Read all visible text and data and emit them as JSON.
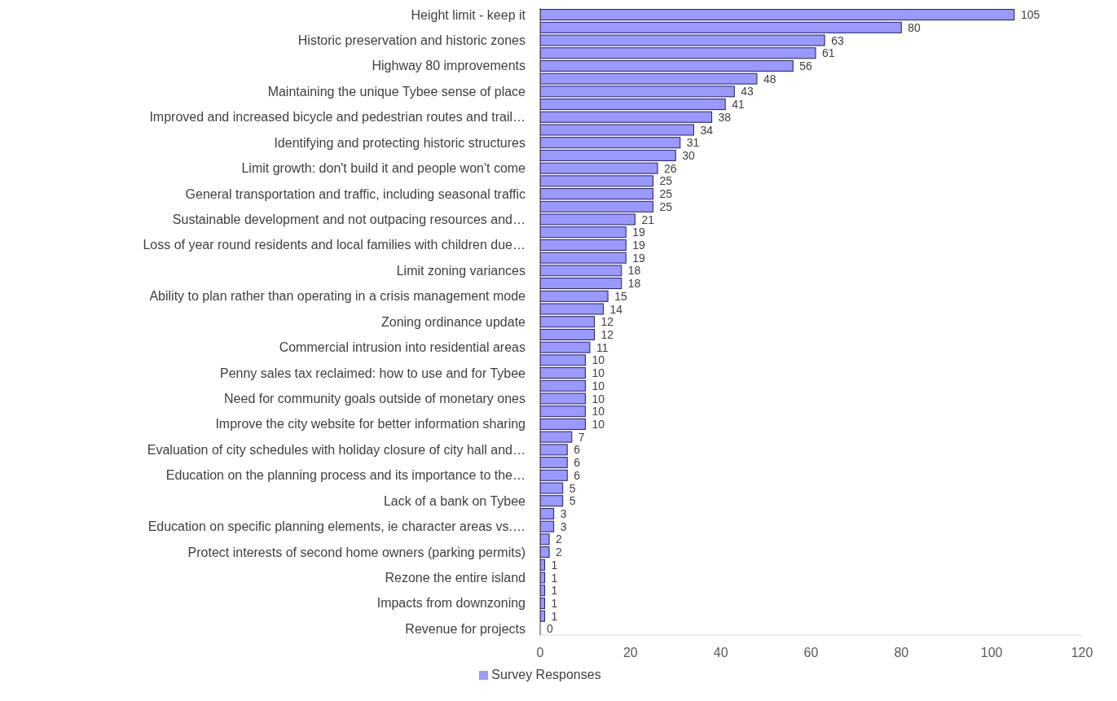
{
  "chart_data": {
    "type": "bar",
    "orientation": "horizontal",
    "categories": [
      "Height limit - keep it",
      null,
      "Historic preservation and historic zones",
      null,
      "Highway 80 improvements",
      null,
      "Maintaining the unique Tybee sense of place",
      null,
      "Improved and increased bicycle and pedestrian routes and trail…",
      null,
      "Identifying and protecting historic structures",
      null,
      "Limit growth: don't build it and people won't come",
      null,
      "General transportation and traffic, including seasonal traffic",
      null,
      "Sustainable development and not outpacing resources and…",
      null,
      "Loss of year round residents and local families with children due…",
      null,
      "Limit zoning variances",
      null,
      "Ability to plan rather than operating in a crisis management mode",
      null,
      "Zoning ordinance update",
      null,
      "Commercial intrusion into residential areas",
      null,
      "Penny sales tax reclaimed: how to use and for Tybee",
      null,
      "Need for community goals outside of monetary ones",
      null,
      "Improve the city website for better information sharing",
      null,
      "Evaluation of city schedules with holiday closure of city hall and…",
      null,
      "Education on the planning process and its importance to the…",
      null,
      "Lack of a bank on Tybee",
      null,
      "Education on specific planning elements, ie character areas vs.…",
      null,
      "Protect interests of second home owners (parking permits)",
      null,
      "Rezone the entire island",
      null,
      "Impacts from downzoning",
      null,
      "Revenue for projects"
    ],
    "series": [
      {
        "name": "Survey Responses",
        "color": "#9999ff",
        "values": [
          105,
          80,
          63,
          61,
          56,
          48,
          43,
          41,
          38,
          34,
          31,
          30,
          26,
          25,
          25,
          25,
          21,
          19,
          19,
          19,
          18,
          18,
          15,
          14,
          12,
          12,
          11,
          10,
          10,
          10,
          10,
          10,
          10,
          7,
          6,
          6,
          6,
          5,
          5,
          3,
          3,
          2,
          2,
          1,
          1,
          1,
          1,
          1,
          0
        ]
      }
    ],
    "xlim": [
      0,
      120
    ],
    "xticks": [
      0,
      20,
      40,
      60,
      80,
      100,
      120
    ],
    "data_labels": true,
    "grid": false,
    "legend": "bottom",
    "tick_labels": "xy"
  }
}
